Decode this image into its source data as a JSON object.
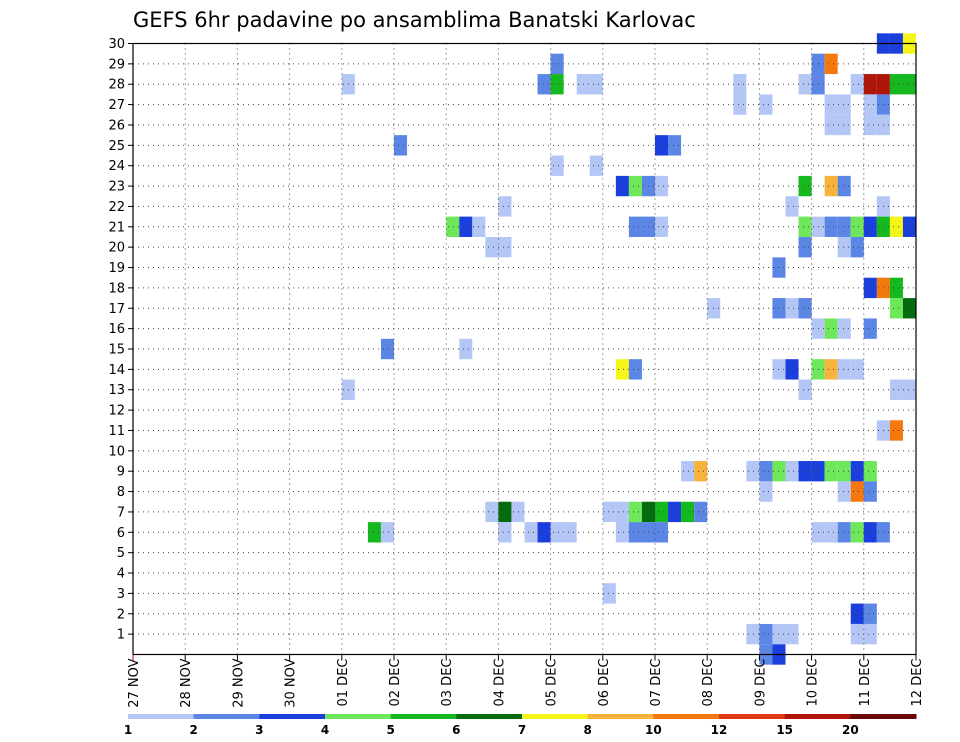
{
  "chart_data": {
    "type": "heatmap",
    "title": "GEFS 6hr padavine po ansamblima Banatski Karlovac",
    "x_tick_labels": [
      "27 NOV",
      "28 NOV",
      "29 NOV",
      "30 NOV",
      "01 DEC",
      "02 DEC",
      "03 DEC",
      "04 DEC",
      "05 DEC",
      "06 DEC",
      "07 DEC",
      "08 DEC",
      "09 DEC",
      "10 DEC",
      "11 DEC",
      "12 DEC"
    ],
    "y_tick_labels": [
      "1",
      "2",
      "3",
      "4",
      "5",
      "6",
      "7",
      "8",
      "9",
      "10",
      "11",
      "12",
      "13",
      "14",
      "15",
      "16",
      "17",
      "18",
      "19",
      "20",
      "21",
      "22",
      "23",
      "24",
      "25",
      "26",
      "27",
      "28",
      "29",
      "30"
    ],
    "ylim": [
      0,
      30
    ],
    "x_unit": "day index from 27 NOV 00Z, 6-hour steps",
    "grid": true,
    "colorbar": {
      "labels": [
        "1",
        "2",
        "3",
        "4",
        "5",
        "6",
        "7",
        "8",
        "10",
        "12",
        "15",
        "20"
      ],
      "colors": [
        "#b3c6f5",
        "#5b86e6",
        "#1a3fdc",
        "#6ee85a",
        "#16b81f",
        "#046b0e",
        "#f5f51a",
        "#f7b33b",
        "#f5780f",
        "#e0390f",
        "#b0150a",
        "#6b0606"
      ]
    },
    "cells": [
      [
        30,
        14.25,
        2
      ],
      [
        30,
        14.5,
        2
      ],
      [
        30,
        14.75,
        6
      ],
      [
        29,
        8.0,
        1
      ],
      [
        29,
        13.0,
        1
      ],
      [
        29,
        13.25,
        8
      ],
      [
        28,
        4.0,
        0
      ],
      [
        28,
        7.75,
        1
      ],
      [
        28,
        8.0,
        4
      ],
      [
        28,
        8.5,
        0
      ],
      [
        28,
        8.75,
        0
      ],
      [
        28,
        11.5,
        0
      ],
      [
        28,
        12.75,
        0
      ],
      [
        28,
        13.0,
        1
      ],
      [
        28,
        13.75,
        0
      ],
      [
        28,
        14.0,
        10
      ],
      [
        28,
        14.25,
        10
      ],
      [
        28,
        14.5,
        4
      ],
      [
        28,
        14.75,
        4
      ],
      [
        27,
        11.5,
        0
      ],
      [
        27,
        12.0,
        0
      ],
      [
        27,
        13.25,
        0
      ],
      [
        27,
        13.5,
        0
      ],
      [
        27,
        14.0,
        0
      ],
      [
        27,
        14.25,
        1
      ],
      [
        26,
        13.25,
        0
      ],
      [
        26,
        13.5,
        0
      ],
      [
        26,
        14.0,
        0
      ],
      [
        26,
        14.25,
        0
      ],
      [
        25,
        5.0,
        1
      ],
      [
        25,
        10.0,
        2
      ],
      [
        25,
        10.25,
        1
      ],
      [
        24,
        8.0,
        0
      ],
      [
        24,
        8.75,
        0
      ],
      [
        23,
        9.25,
        2
      ],
      [
        23,
        9.5,
        3
      ],
      [
        23,
        9.75,
        1
      ],
      [
        23,
        10.0,
        0
      ],
      [
        23,
        12.75,
        4
      ],
      [
        23,
        13.25,
        7
      ],
      [
        23,
        13.5,
        1
      ],
      [
        22,
        7.0,
        0
      ],
      [
        22,
        12.5,
        0
      ],
      [
        22,
        14.25,
        0
      ],
      [
        21,
        6.0,
        3
      ],
      [
        21,
        6.25,
        2
      ],
      [
        21,
        6.5,
        0
      ],
      [
        21,
        9.5,
        1
      ],
      [
        21,
        9.75,
        1
      ],
      [
        21,
        10.0,
        0
      ],
      [
        21,
        12.75,
        3
      ],
      [
        21,
        13.0,
        0
      ],
      [
        21,
        13.25,
        1
      ],
      [
        21,
        13.5,
        1
      ],
      [
        21,
        13.75,
        3
      ],
      [
        21,
        14.0,
        2
      ],
      [
        21,
        14.25,
        4
      ],
      [
        21,
        14.5,
        6
      ],
      [
        21,
        14.75,
        2
      ],
      [
        20,
        6.75,
        0
      ],
      [
        20,
        7.0,
        0
      ],
      [
        20,
        12.75,
        1
      ],
      [
        20,
        13.5,
        0
      ],
      [
        20,
        13.75,
        1
      ],
      [
        19,
        12.25,
        1
      ],
      [
        18,
        14.0,
        2
      ],
      [
        18,
        14.25,
        8
      ],
      [
        18,
        14.5,
        4
      ],
      [
        17,
        11.0,
        0
      ],
      [
        17,
        12.25,
        1
      ],
      [
        17,
        12.5,
        0
      ],
      [
        17,
        12.75,
        1
      ],
      [
        17,
        14.5,
        3
      ],
      [
        17,
        14.75,
        5
      ],
      [
        16,
        13.0,
        0
      ],
      [
        16,
        13.25,
        3
      ],
      [
        16,
        13.5,
        0
      ],
      [
        16,
        14.0,
        1
      ],
      [
        15,
        4.75,
        1
      ],
      [
        15,
        6.25,
        0
      ],
      [
        14,
        9.25,
        6
      ],
      [
        14,
        9.5,
        1
      ],
      [
        14,
        12.25,
        0
      ],
      [
        14,
        12.5,
        2
      ],
      [
        14,
        13.0,
        3
      ],
      [
        14,
        13.25,
        7
      ],
      [
        14,
        13.5,
        0
      ],
      [
        14,
        13.75,
        0
      ],
      [
        13,
        4.0,
        0
      ],
      [
        13,
        12.75,
        0
      ],
      [
        13,
        14.5,
        0
      ],
      [
        13,
        14.75,
        0
      ],
      [
        11,
        14.25,
        0
      ],
      [
        11,
        14.5,
        8
      ],
      [
        9,
        10.5,
        0
      ],
      [
        9,
        10.75,
        7
      ],
      [
        9,
        11.75,
        0
      ],
      [
        9,
        12.0,
        1
      ],
      [
        9,
        12.25,
        3
      ],
      [
        9,
        12.5,
        0
      ],
      [
        9,
        12.75,
        2
      ],
      [
        9,
        13.0,
        2
      ],
      [
        9,
        13.25,
        3
      ],
      [
        9,
        13.5,
        3
      ],
      [
        9,
        13.75,
        2
      ],
      [
        9,
        14.0,
        3
      ],
      [
        8,
        12.0,
        0
      ],
      [
        8,
        13.5,
        0
      ],
      [
        8,
        13.75,
        8
      ],
      [
        8,
        14.0,
        1
      ],
      [
        7,
        6.75,
        0
      ],
      [
        7,
        7.0,
        5
      ],
      [
        7,
        7.25,
        0
      ],
      [
        7,
        9.0,
        0
      ],
      [
        7,
        9.25,
        0
      ],
      [
        7,
        9.5,
        3
      ],
      [
        7,
        9.75,
        5
      ],
      [
        7,
        10.0,
        4
      ],
      [
        7,
        10.25,
        2
      ],
      [
        7,
        10.5,
        4
      ],
      [
        7,
        10.75,
        1
      ],
      [
        6,
        4.5,
        4
      ],
      [
        6,
        4.75,
        0
      ],
      [
        6,
        7.0,
        0
      ],
      [
        6,
        7.5,
        0
      ],
      [
        6,
        7.75,
        2
      ],
      [
        6,
        8.0,
        0
      ],
      [
        6,
        8.25,
        0
      ],
      [
        6,
        9.25,
        0
      ],
      [
        6,
        9.5,
        1
      ],
      [
        6,
        9.75,
        1
      ],
      [
        6,
        10.0,
        1
      ],
      [
        6,
        13.0,
        0
      ],
      [
        6,
        13.25,
        0
      ],
      [
        6,
        13.5,
        1
      ],
      [
        6,
        13.75,
        3
      ],
      [
        6,
        14.0,
        2
      ],
      [
        6,
        14.25,
        1
      ],
      [
        3,
        9.0,
        0
      ],
      [
        2,
        13.75,
        2
      ],
      [
        2,
        14.0,
        1
      ],
      [
        1,
        11.75,
        0
      ],
      [
        1,
        12.0,
        1
      ],
      [
        1,
        12.25,
        0
      ],
      [
        1,
        12.5,
        0
      ],
      [
        1,
        13.75,
        0
      ],
      [
        1,
        14.0,
        0
      ],
      [
        0,
        12.0,
        1
      ],
      [
        0,
        12.25,
        2
      ]
    ]
  }
}
